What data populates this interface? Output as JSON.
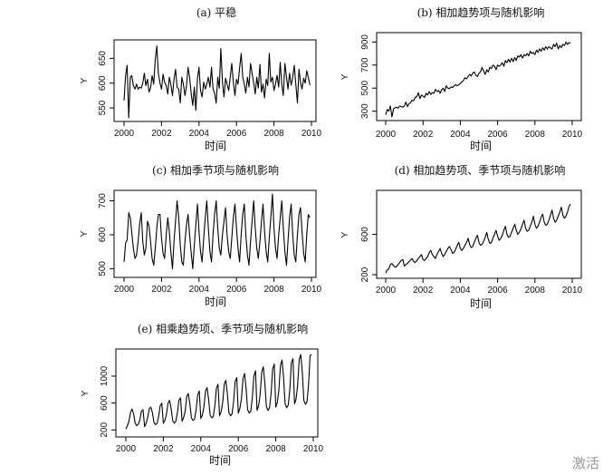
{
  "figure": {
    "watermark": "激活"
  },
  "chart_data": [
    {
      "type": "line",
      "title": "(a) 平稳",
      "xlabel": "时间",
      "ylabel": "Y",
      "xlim": [
        2000,
        2010
      ],
      "ylim": [
        530,
        680
      ],
      "xticks": [
        2000,
        2002,
        2004,
        2006,
        2008,
        2010
      ],
      "yticks": [
        550,
        600,
        650
      ],
      "series": [
        {
          "x_start": 2000,
          "x_step": 0.08333,
          "values": [
            565,
            615,
            636,
            530,
            612,
            615,
            595,
            588,
            598,
            588,
            592,
            590,
            600,
            620,
            595,
            608,
            582,
            590,
            615,
            598,
            648,
            675,
            620,
            600,
            588,
            618,
            602,
            595,
            578,
            612,
            598,
            575,
            608,
            628,
            592,
            588,
            560,
            612,
            598,
            575,
            595,
            632,
            612,
            578,
            555,
            592,
            545,
            610,
            632,
            585,
            572,
            602,
            588,
            598,
            612,
            592,
            632,
            588,
            580,
            560,
            612,
            590,
            670,
            602,
            572,
            610,
            598,
            585,
            612,
            640,
            602,
            575,
            608,
            598,
            630,
            660,
            612,
            598,
            580,
            612,
            592,
            640,
            620,
            600,
            578,
            612,
            590,
            638,
            582,
            598,
            570,
            608,
            595,
            660,
            602,
            612,
            585,
            598,
            616,
            592,
            642,
            598,
            575,
            640,
            612,
            588,
            620,
            596,
            612,
            636,
            598,
            560,
            628,
            602,
            588,
            610,
            600,
            625,
            612,
            596
          ]
        }
      ]
    },
    {
      "type": "line",
      "title": "(b) 相加趋势项与随机影响",
      "xlabel": "时间",
      "ylabel": "Y",
      "xlim": [
        2000,
        2010
      ],
      "ylim": [
        250,
        950
      ],
      "xticks": [
        2000,
        2002,
        2004,
        2006,
        2008,
        2010
      ],
      "yticks": [
        300,
        500,
        700,
        900
      ],
      "series": [
        {
          "x_start": 2000,
          "x_step": 0.08333,
          "values": [
            270,
            315,
            300,
            345,
            250,
            320,
            330,
            335,
            325,
            345,
            340,
            335,
            345,
            380,
            340,
            365,
            375,
            395,
            390,
            420,
            425,
            460,
            410,
            440,
            430,
            420,
            455,
            440,
            470,
            445,
            460,
            455,
            490,
            470,
            480,
            455,
            485,
            500,
            470,
            520,
            500,
            495,
            510,
            505,
            520,
            530,
            520,
            530,
            540,
            555,
            565,
            590,
            580,
            600,
            620,
            605,
            630,
            640,
            610,
            600,
            630,
            640,
            680,
            650,
            620,
            660,
            640,
            680,
            670,
            700,
            690,
            660,
            700,
            690,
            700,
            720,
            690,
            740,
            720,
            750,
            725,
            760,
            730,
            765,
            740,
            780,
            770,
            790,
            760,
            790,
            780,
            800,
            780,
            820,
            800,
            810,
            790,
            830,
            810,
            840,
            820,
            850,
            830,
            860,
            840,
            860,
            850,
            840,
            880,
            860,
            890,
            840,
            870,
            850,
            880,
            870,
            900,
            880,
            895,
            890
          ]
        }
      ]
    },
    {
      "type": "line",
      "title": "(c) 相加季节项与随机影响",
      "xlabel": "时间",
      "ylabel": "Y",
      "xlim": [
        2000,
        2010
      ],
      "ylim": [
        485,
        720
      ],
      "xticks": [
        2000,
        2002,
        2004,
        2006,
        2008,
        2010
      ],
      "yticks": [
        500,
        600,
        700
      ],
      "series": [
        {
          "x_start": 2000,
          "x_step": 0.08333,
          "values": [
            520,
            575,
            585,
            665,
            650,
            605,
            560,
            530,
            540,
            580,
            630,
            665,
            580,
            540,
            560,
            640,
            625,
            580,
            530,
            510,
            560,
            620,
            660,
            660,
            590,
            545,
            530,
            600,
            650,
            610,
            550,
            500,
            580,
            640,
            700,
            650,
            570,
            520,
            510,
            580,
            630,
            660,
            600,
            545,
            500,
            570,
            630,
            690,
            610,
            550,
            520,
            590,
            650,
            700,
            620,
            550,
            520,
            600,
            660,
            700,
            620,
            560,
            540,
            600,
            640,
            680,
            600,
            550,
            530,
            590,
            650,
            690,
            620,
            560,
            520,
            600,
            660,
            690,
            600,
            540,
            510,
            580,
            640,
            700,
            620,
            560,
            530,
            580,
            640,
            690,
            610,
            550,
            520,
            590,
            650,
            720,
            620,
            560,
            530,
            600,
            650,
            700,
            620,
            550,
            510,
            580,
            650,
            690,
            600,
            540,
            520,
            600,
            660,
            680,
            610,
            545,
            520,
            600,
            660,
            650
          ]
        }
      ]
    },
    {
      "type": "line",
      "title": "(d) 相加趋势项、季节项与随机影响",
      "xlabel": "时间",
      "ylabel": "Y",
      "xlim": [
        2000,
        2010
      ],
      "ylim": [
        200,
        1000
      ],
      "xticks": [
        2000,
        2002,
        2004,
        2006,
        2008,
        2010
      ],
      "yticks": [
        200,
        600
      ],
      "series": [
        {
          "x_start": 2000,
          "x_step": 0.08333,
          "values": [
            215,
            250,
            255,
            300,
            310,
            290,
            275,
            280,
            300,
            320,
            340,
            350,
            285,
            300,
            310,
            330,
            345,
            360,
            330,
            320,
            340,
            360,
            380,
            400,
            350,
            340,
            360,
            380,
            420,
            440,
            400,
            380,
            360,
            400,
            430,
            460,
            410,
            380,
            400,
            430,
            460,
            480,
            450,
            410,
            420,
            450,
            490,
            520,
            460,
            440,
            460,
            490,
            520,
            560,
            500,
            470,
            480,
            520,
            560,
            590,
            520,
            490,
            500,
            530,
            570,
            620,
            550,
            510,
            520,
            560,
            600,
            640,
            580,
            540,
            560,
            590,
            640,
            680,
            600,
            570,
            580,
            620,
            660,
            700,
            640,
            600,
            620,
            650,
            700,
            740,
            660,
            630,
            640,
            680,
            720,
            780,
            700,
            660,
            680,
            720,
            770,
            800,
            720,
            690,
            700,
            740,
            790,
            840,
            760,
            720,
            740,
            780,
            820,
            870,
            790,
            760,
            780,
            820,
            880,
            900
          ]
        }
      ]
    },
    {
      "type": "line",
      "title": "(e) 相乘趋势项、季节项与随机影响",
      "xlabel": "时间",
      "ylabel": "Y",
      "xlim": [
        2000,
        2010
      ],
      "ylim": [
        150,
        1350
      ],
      "xticks": [
        2000,
        2002,
        2004,
        2006,
        2008,
        2010
      ],
      "yticks": [
        200,
        600,
        1000
      ],
      "series": [
        {
          "x_start": 2000,
          "x_step": 0.08333,
          "values": [
            215,
            260,
            330,
            460,
            510,
            440,
            300,
            265,
            285,
            350,
            480,
            500,
            250,
            300,
            380,
            520,
            540,
            460,
            310,
            280,
            300,
            400,
            560,
            600,
            300,
            340,
            430,
            600,
            640,
            520,
            340,
            300,
            330,
            450,
            640,
            680,
            330,
            380,
            480,
            700,
            740,
            590,
            380,
            340,
            360,
            500,
            720,
            780,
            370,
            420,
            540,
            780,
            830,
            660,
            420,
            380,
            400,
            560,
            820,
            880,
            410,
            470,
            600,
            880,
            940,
            740,
            460,
            410,
            440,
            620,
            920,
            980,
            450,
            520,
            660,
            960,
            1040,
            820,
            500,
            450,
            480,
            680,
            1000,
            1080,
            490,
            560,
            720,
            1060,
            1140,
            900,
            550,
            490,
            530,
            740,
            1100,
            1180,
            540,
            610,
            790,
            1160,
            1240,
            980,
            590,
            530,
            570,
            800,
            1200,
            1260,
            590,
            660,
            860,
            1250,
            1320,
            1060,
            640,
            580,
            620,
            880,
            1310,
            1320
          ]
        }
      ]
    }
  ]
}
